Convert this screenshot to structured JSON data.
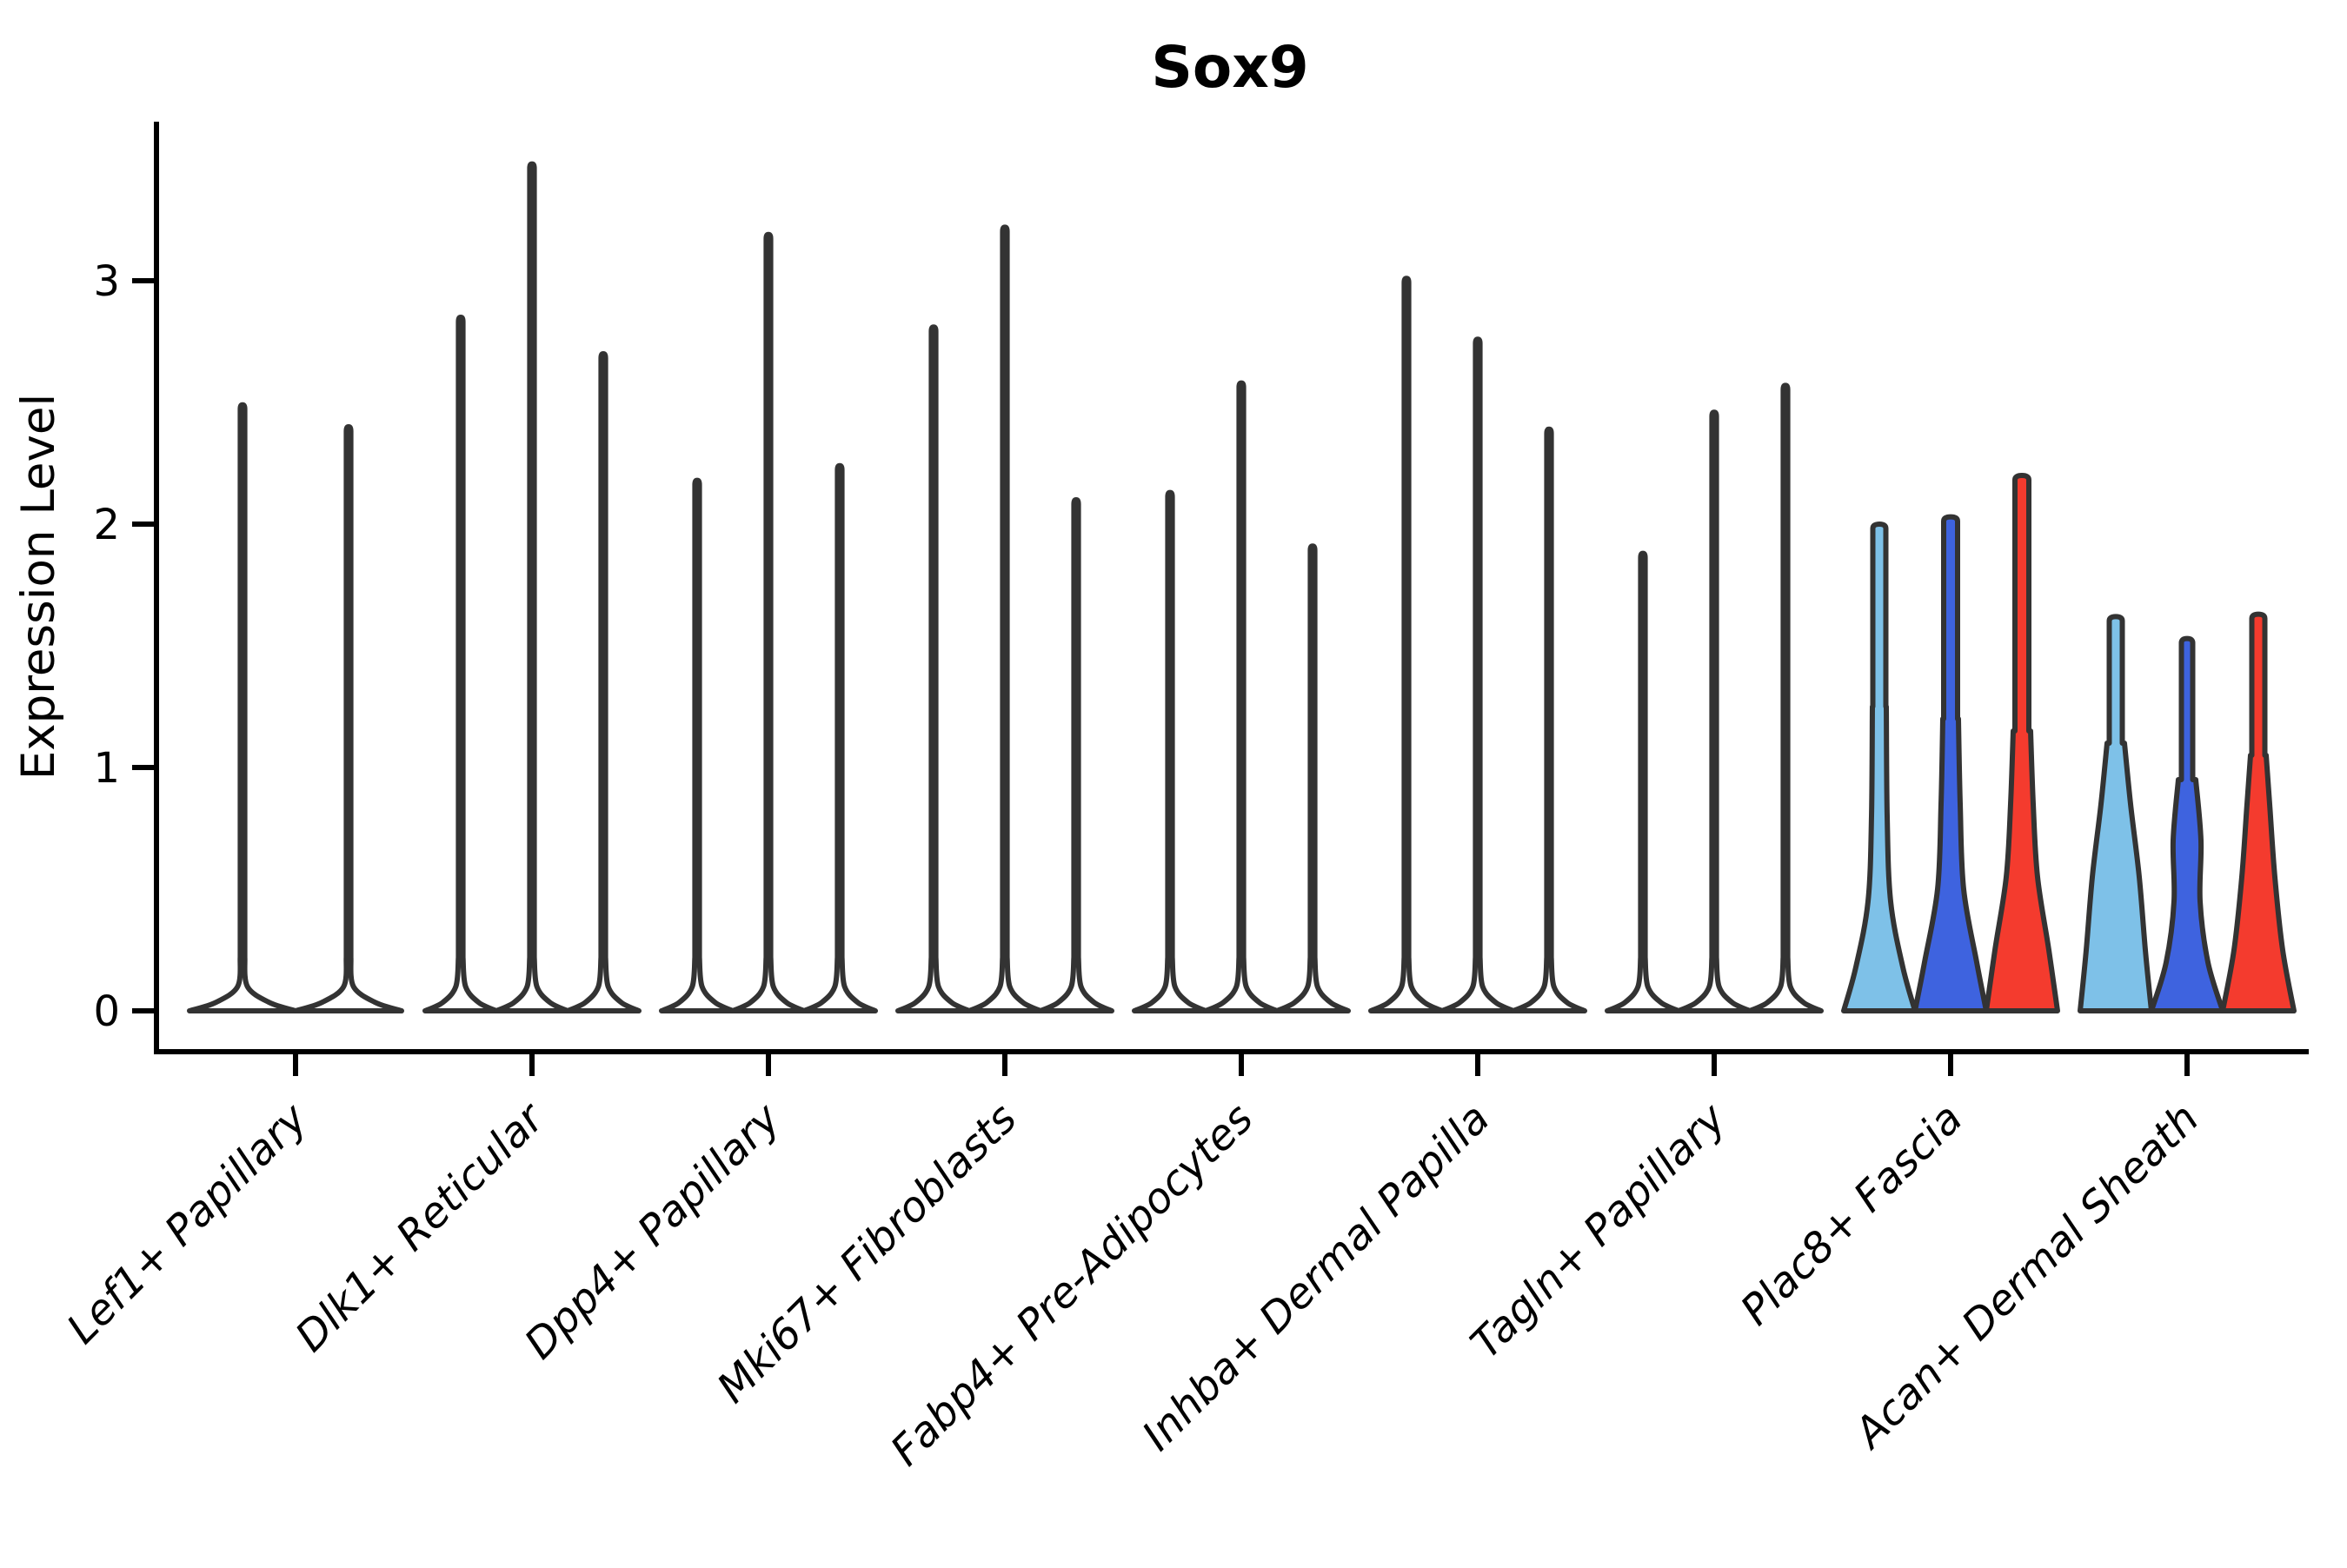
{
  "title": "Sox9",
  "axes": {
    "ylabel": "Expression Level",
    "ytick_labels": [
      "0",
      "1",
      "2",
      "3"
    ]
  },
  "palette": {
    "series": [
      "#7EC1E8",
      "#3E63DF",
      "#F43B2E"
    ],
    "violin_outline": "#333333",
    "axis_color": "#000000",
    "background": "#ffffff"
  },
  "chart_data": {
    "type": "violin",
    "title": "Sox9",
    "xlabel": "",
    "ylabel": "Expression Level",
    "ylim": [
      -0.17,
      3.66
    ],
    "yticks": [
      0,
      1,
      2,
      3
    ],
    "grid": false,
    "legend_position": "none",
    "x_tick_rotation": 45,
    "description": "Violin plot of Sox9 expression per fibroblast cluster; 3 sample-split violins per cluster (2 in the first). Most clusters show near-zero expression (thin spikes); Plac8+ Fascia and Acan+ Dermal Sheath show visible colored violin bodies (light blue, dark blue, red).",
    "categories": [
      "Lef1+ Papillary",
      "Dlk1+ Reticular",
      "Dpp4+ Papillary",
      "Mki67+ Fibroblasts",
      "Fabp4+ Pre-Adipocytes",
      "Inhba+ Dermal Papilla",
      "Tagln+ Papillary",
      "Plac8+ Fascia",
      "Acan+ Dermal Sheath"
    ],
    "series_colors": [
      "#7EC1E8",
      "#3E63DF",
      "#F43B2E"
    ],
    "groups": [
      {
        "category": "Lef1+ Papillary",
        "style": "spike",
        "max_values": [
          2.49,
          2.4
        ]
      },
      {
        "category": "Dlk1+ Reticular",
        "style": "spike",
        "max_values": [
          2.85,
          3.48,
          2.7
        ]
      },
      {
        "category": "Dpp4+ Papillary",
        "style": "spike",
        "max_values": [
          2.18,
          3.19,
          2.24
        ]
      },
      {
        "category": "Mki67+ Fibroblasts",
        "style": "spike",
        "max_values": [
          2.81,
          3.22,
          2.1
        ]
      },
      {
        "category": "Fabp4+ Pre-Adipocytes",
        "style": "spike",
        "max_values": [
          2.13,
          2.58,
          1.91
        ]
      },
      {
        "category": "Inhba+ Dermal Papilla",
        "style": "spike",
        "max_values": [
          3.01,
          2.76,
          2.39
        ]
      },
      {
        "category": "Tagln+ Papillary",
        "style": "spike",
        "max_values": [
          1.88,
          2.46,
          2.57
        ]
      },
      {
        "category": "Plac8+ Fascia",
        "style": "filled",
        "max_values": [
          2.0,
          2.03,
          2.2
        ],
        "profiles": [
          [
            [
              0,
              41
            ],
            [
              0.18,
              27
            ],
            [
              0.45,
              13
            ],
            [
              0.8,
              9
            ],
            [
              1.25,
              8
            ]
          ],
          [
            [
              0,
              41
            ],
            [
              0.2,
              30
            ],
            [
              0.5,
              15
            ],
            [
              0.85,
              11
            ],
            [
              1.2,
              9
            ]
          ],
          [
            [
              0,
              41
            ],
            [
              0.25,
              31
            ],
            [
              0.55,
              18
            ],
            [
              0.85,
              13
            ],
            [
              1.15,
              10
            ]
          ]
        ],
        "stem_halfwidths": [
          7.5,
          8,
          8
        ]
      },
      {
        "category": "Acan+ Dermal Sheath",
        "style": "filled",
        "max_values": [
          1.62,
          1.53,
          1.63
        ],
        "profiles": [
          [
            [
              0,
              41
            ],
            [
              0.25,
              34
            ],
            [
              0.55,
              27
            ],
            [
              0.85,
              17
            ],
            [
              1.1,
              10
            ]
          ],
          [
            [
              0,
              41
            ],
            [
              0.2,
              24
            ],
            [
              0.45,
              15
            ],
            [
              0.7,
              16
            ],
            [
              0.95,
              10
            ]
          ],
          [
            [
              0,
              41
            ],
            [
              0.25,
              28
            ],
            [
              0.55,
              19
            ],
            [
              0.85,
              13
            ],
            [
              1.05,
              9
            ]
          ]
        ],
        "stem_halfwidths": [
          7.5,
          6.5,
          7.5
        ]
      }
    ]
  }
}
